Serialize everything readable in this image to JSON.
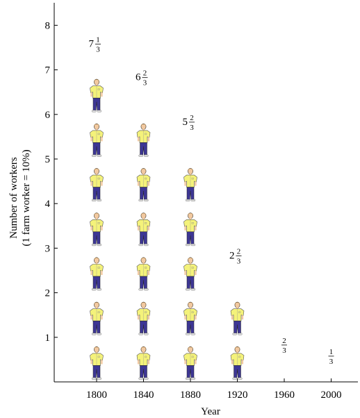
{
  "chart_data": {
    "type": "bar",
    "subtype": "pictograph",
    "categories": [
      "1800",
      "1840",
      "1880",
      "1920",
      "1960",
      "2000"
    ],
    "values": [
      7.3333,
      6.6667,
      5.6667,
      2.6667,
      0.6667,
      0.3333
    ],
    "labels": [
      {
        "whole": "7",
        "num": "1",
        "den": "3"
      },
      {
        "whole": "6",
        "num": "2",
        "den": "3"
      },
      {
        "whole": "5",
        "num": "2",
        "den": "3"
      },
      {
        "whole": "2",
        "num": "2",
        "den": "3"
      },
      {
        "whole": "",
        "num": "2",
        "den": "3"
      },
      {
        "whole": "",
        "num": "1",
        "den": "3"
      }
    ],
    "xlabel": "Year",
    "ylabel_line1": "Number of workers",
    "ylabel_line2": "(1 farm worker = 10%)",
    "yticks": [
      "1",
      "2",
      "3",
      "4",
      "5",
      "6",
      "7",
      "8"
    ],
    "ylim": [
      0,
      8.5
    ],
    "icon": "farm-worker-icon",
    "colors": {
      "shirt": "#f4f27a",
      "pants": "#3d3694",
      "skin": "#f2c9a0",
      "hair": "#b08850"
    }
  }
}
